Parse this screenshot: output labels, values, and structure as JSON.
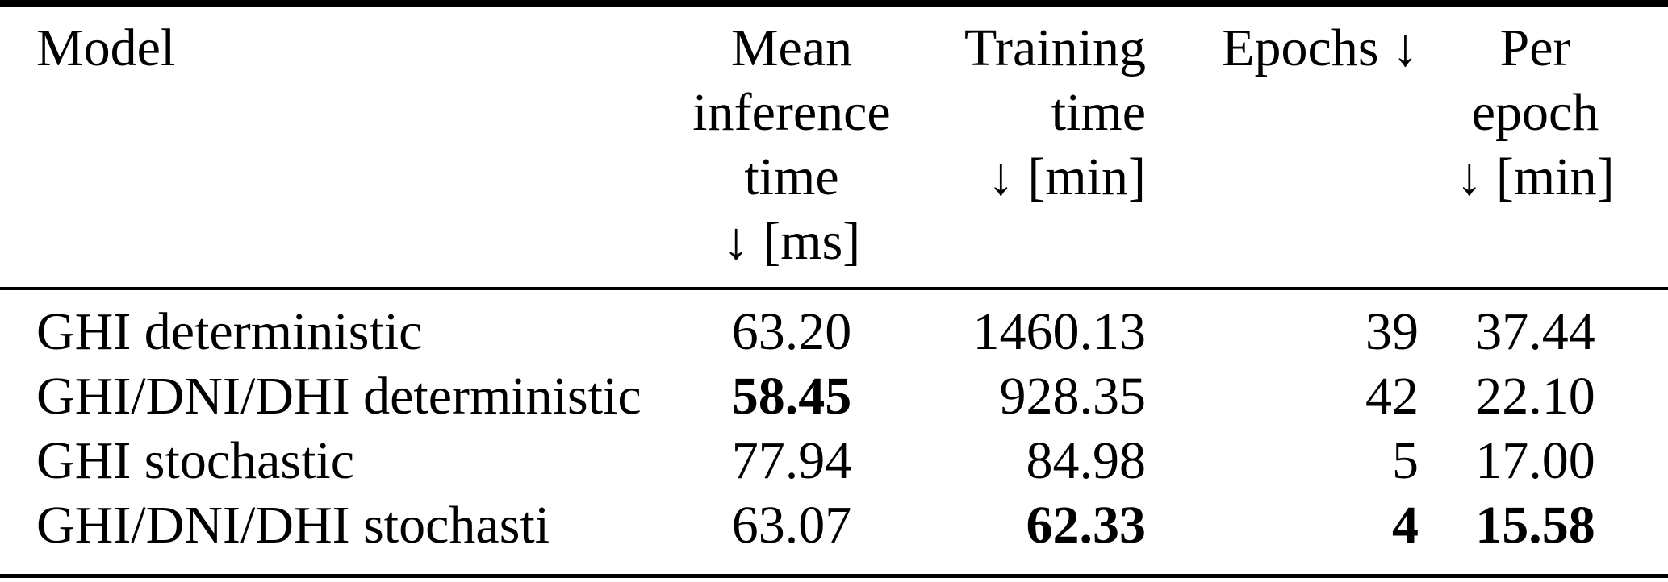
{
  "colors": {
    "background": "#ffffff",
    "text": "#000000",
    "rule": "#000000"
  },
  "table": {
    "headers": [
      {
        "id": "model",
        "lines": [
          "Model"
        ]
      },
      {
        "id": "mean-inference-time",
        "lines": [
          "Mean",
          "inference",
          "time",
          "↓ [ms]"
        ]
      },
      {
        "id": "training-time",
        "lines": [
          "Training",
          "time",
          "↓ [min]"
        ]
      },
      {
        "id": "epochs",
        "lines": [
          "Epochs ↓"
        ]
      },
      {
        "id": "per-epoch",
        "lines": [
          "Per",
          "epoch",
          "↓ [min]"
        ]
      }
    ],
    "rows": [
      {
        "model": "GHI deterministic",
        "values": [
          {
            "text": "63.20",
            "bold": false
          },
          {
            "text": "1460.13",
            "bold": false
          },
          {
            "text": "39",
            "bold": false
          },
          {
            "text": "37.44",
            "bold": false
          }
        ]
      },
      {
        "model": "GHI/DNI/DHI deterministic",
        "values": [
          {
            "text": "58.45",
            "bold": true
          },
          {
            "text": "928.35",
            "bold": false
          },
          {
            "text": "42",
            "bold": false
          },
          {
            "text": "22.10",
            "bold": false
          }
        ]
      },
      {
        "model": "GHI stochastic",
        "values": [
          {
            "text": "77.94",
            "bold": false
          },
          {
            "text": "84.98",
            "bold": false
          },
          {
            "text": "5",
            "bold": false
          },
          {
            "text": "17.00",
            "bold": false
          }
        ]
      },
      {
        "model": "GHI/DNI/DHI stochasti",
        "values": [
          {
            "text": "63.07",
            "bold": false
          },
          {
            "text": "62.33",
            "bold": true
          },
          {
            "text": "4",
            "bold": true
          },
          {
            "text": "15.58",
            "bold": true
          }
        ]
      }
    ]
  },
  "chart_data": {
    "type": "table",
    "title": "",
    "columns": [
      "Model",
      "Mean inference time ↓ [ms]",
      "Training time ↓ [min]",
      "Epochs ↓",
      "Per epoch ↓ [min]"
    ],
    "rows": [
      [
        "GHI deterministic",
        63.2,
        1460.13,
        39,
        37.44
      ],
      [
        "GHI/DNI/DHI deterministic",
        58.45,
        928.35,
        42,
        22.1
      ],
      [
        "GHI stochastic",
        77.94,
        84.98,
        5,
        17.0
      ],
      [
        "GHI/DNI/DHI stochasti",
        63.07,
        62.33,
        4,
        15.58
      ]
    ],
    "bold_cells_row_col": [
      [
        1,
        1
      ],
      [
        3,
        2
      ],
      [
        3,
        3
      ],
      [
        3,
        4
      ]
    ]
  }
}
